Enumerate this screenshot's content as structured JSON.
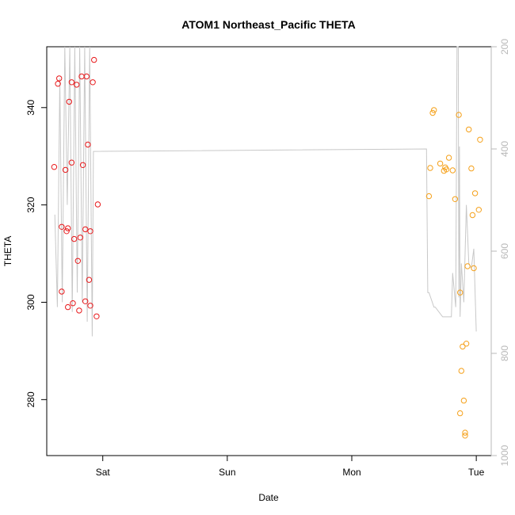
{
  "chart_data": {
    "type": "scatter",
    "title": "ATOM1 Northeast_Pacific THETA",
    "xlabel": "Date",
    "ylabel": "THETA",
    "x_tick_labels": [
      "Sat",
      "Sun",
      "Mon",
      "Tue"
    ],
    "x_ticks_days": [
      1,
      2,
      3,
      4
    ],
    "xlim_days": [
      0.55,
      4.12
    ],
    "ylim": [
      268.5,
      352.5
    ],
    "y_ticks": [
      280,
      300,
      320,
      340
    ],
    "y2_label": "",
    "y2_lim": [
      1000,
      200
    ],
    "y2_ticks": [
      200,
      400,
      600,
      800,
      1000
    ],
    "grid": false,
    "line_color": "#c8c8c8",
    "series_colors": [
      "#e8191b",
      "#f5a11b"
    ],
    "line": {
      "x_days": [
        0.615,
        0.635,
        0.655,
        0.675,
        0.695,
        0.715,
        0.735,
        0.755,
        0.775,
        0.795,
        0.815,
        0.835,
        0.855,
        0.875,
        0.895,
        0.915,
        0.925,
        3.6,
        3.61,
        3.62,
        3.66,
        3.67,
        3.73,
        3.74,
        3.8,
        3.81,
        3.835,
        3.845,
        3.855,
        3.86,
        3.865,
        3.87,
        3.875,
        3.88,
        3.885,
        3.9,
        3.92,
        3.94,
        3.96,
        3.98,
        4.0
      ],
      "y": [
        318,
        299,
        346,
        300,
        360,
        320,
        355,
        298,
        360,
        302,
        355,
        300,
        360,
        296,
        360,
        293,
        331,
        331.5,
        302,
        302,
        299,
        299,
        297,
        297,
        297,
        306,
        299,
        360,
        360,
        301,
        332,
        297,
        302,
        308,
        306,
        300,
        320,
        308,
        307,
        311,
        294
      ]
    },
    "series": [
      {
        "points": [
          [
            0.61,
            327.8
          ],
          [
            0.64,
            344.9
          ],
          [
            0.65,
            346
          ],
          [
            0.67,
            315.5
          ],
          [
            0.67,
            302.2
          ],
          [
            0.7,
            327.2
          ],
          [
            0.71,
            314.6
          ],
          [
            0.72,
            299
          ],
          [
            0.72,
            315.2
          ],
          [
            0.73,
            341.2
          ],
          [
            0.75,
            345.2
          ],
          [
            0.75,
            328.7
          ],
          [
            0.76,
            299.8
          ],
          [
            0.77,
            313
          ],
          [
            0.79,
            344.7
          ],
          [
            0.8,
            308.5
          ],
          [
            0.81,
            298.3
          ],
          [
            0.82,
            313.3
          ],
          [
            0.83,
            346.4
          ],
          [
            0.84,
            328.2
          ],
          [
            0.86,
            315
          ],
          [
            0.86,
            300.2
          ],
          [
            0.87,
            346.4
          ],
          [
            0.88,
            332.4
          ],
          [
            0.89,
            304.6
          ],
          [
            0.9,
            299.3
          ],
          [
            0.9,
            314.6
          ],
          [
            0.92,
            345.2
          ],
          [
            0.93,
            349.8
          ],
          [
            0.95,
            297.1
          ],
          [
            0.96,
            320.1
          ]
        ]
      },
      {
        "points": [
          [
            3.62,
            321.8
          ],
          [
            3.63,
            327.6
          ],
          [
            3.65,
            338.9
          ],
          [
            3.66,
            339.5
          ],
          [
            3.71,
            328.5
          ],
          [
            3.74,
            327
          ],
          [
            3.75,
            327.7
          ],
          [
            3.76,
            327.3
          ],
          [
            3.78,
            329.7
          ],
          [
            3.81,
            327.1
          ],
          [
            3.83,
            321.2
          ],
          [
            3.86,
            338.5
          ],
          [
            3.87,
            302
          ],
          [
            3.87,
            277.2
          ],
          [
            3.88,
            285.9
          ],
          [
            3.89,
            290.9
          ],
          [
            3.9,
            279.8
          ],
          [
            3.91,
            273.2
          ],
          [
            3.91,
            272.6
          ],
          [
            3.92,
            291.5
          ],
          [
            3.93,
            307.4
          ],
          [
            3.94,
            335.5
          ],
          [
            3.96,
            327.5
          ],
          [
            3.97,
            317.9
          ],
          [
            3.98,
            307
          ],
          [
            3.99,
            322.4
          ],
          [
            4.02,
            319
          ],
          [
            4.03,
            333.4
          ]
        ]
      }
    ]
  }
}
